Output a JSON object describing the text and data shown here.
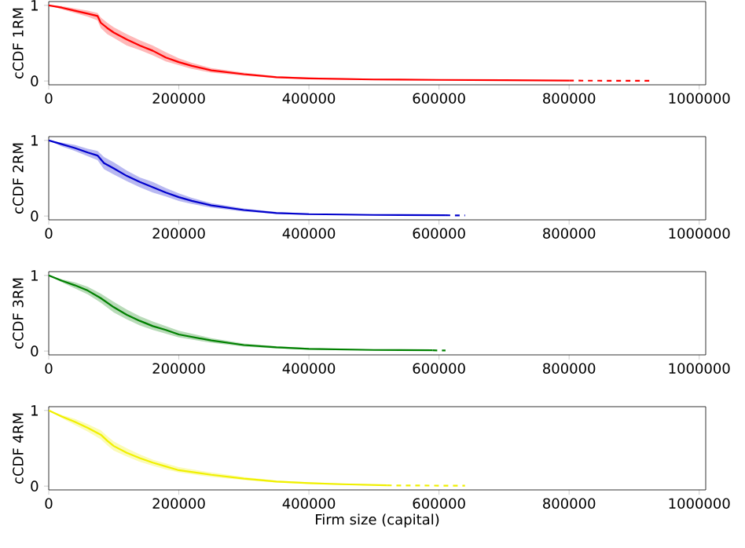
{
  "chart_data": [
    {
      "type": "line",
      "ylabel": "cCDF 1RM",
      "xlim": [
        0,
        1010000
      ],
      "ylim": [
        -0.05,
        1.05
      ],
      "xticks": [
        0,
        200000,
        400000,
        600000,
        800000,
        1000000
      ],
      "yticks": [
        0,
        1
      ],
      "series": [
        {
          "color": "#ff0000",
          "line_style": "solid",
          "x": [
            0,
            20000,
            40000,
            60000,
            75000,
            80000,
            90000,
            100000,
            120000,
            140000,
            160000,
            180000,
            200000,
            220000,
            250000,
            300000,
            350000,
            400000,
            500000,
            600000,
            700000,
            800000
          ],
          "values": [
            1.0,
            0.97,
            0.93,
            0.89,
            0.86,
            0.77,
            0.7,
            0.64,
            0.55,
            0.47,
            0.4,
            0.31,
            0.25,
            0.2,
            0.14,
            0.09,
            0.05,
            0.035,
            0.02,
            0.015,
            0.01,
            0.005
          ],
          "lower": [
            1.0,
            0.95,
            0.9,
            0.85,
            0.8,
            0.7,
            0.62,
            0.57,
            0.47,
            0.41,
            0.34,
            0.26,
            0.21,
            0.16,
            0.11,
            0.07,
            0.04,
            0.025,
            0.015,
            0.01,
            0.005,
            0.0
          ],
          "upper": [
            1.0,
            0.99,
            0.96,
            0.93,
            0.9,
            0.84,
            0.77,
            0.71,
            0.62,
            0.54,
            0.47,
            0.38,
            0.3,
            0.24,
            0.17,
            0.11,
            0.065,
            0.045,
            0.03,
            0.02,
            0.015,
            0.01
          ]
        },
        {
          "color": "#ff0000",
          "line_style": "dashed",
          "x": [
            800000,
            930000
          ],
          "values": [
            0.005,
            0.003
          ]
        }
      ]
    },
    {
      "type": "line",
      "ylabel": "cCDF 2RM",
      "xlim": [
        0,
        1010000
      ],
      "ylim": [
        -0.05,
        1.05
      ],
      "xticks": [
        0,
        200000,
        400000,
        600000,
        800000,
        1000000
      ],
      "yticks": [
        0,
        1
      ],
      "series": [
        {
          "color": "#0000cc",
          "line_style": "solid",
          "x": [
            0,
            20000,
            40000,
            60000,
            75000,
            85000,
            100000,
            120000,
            140000,
            160000,
            180000,
            200000,
            220000,
            250000,
            300000,
            350000,
            400000,
            500000,
            610000
          ],
          "values": [
            1.0,
            0.95,
            0.9,
            0.84,
            0.8,
            0.7,
            0.63,
            0.53,
            0.45,
            0.38,
            0.31,
            0.25,
            0.2,
            0.14,
            0.08,
            0.04,
            0.025,
            0.015,
            0.01
          ],
          "lower": [
            1.0,
            0.92,
            0.86,
            0.79,
            0.74,
            0.62,
            0.55,
            0.46,
            0.38,
            0.31,
            0.26,
            0.2,
            0.16,
            0.11,
            0.06,
            0.03,
            0.015,
            0.01,
            0.005
          ],
          "upper": [
            1.0,
            0.97,
            0.94,
            0.89,
            0.86,
            0.78,
            0.71,
            0.6,
            0.51,
            0.45,
            0.37,
            0.3,
            0.24,
            0.17,
            0.1,
            0.055,
            0.035,
            0.02,
            0.015
          ]
        },
        {
          "color": "#0000cc",
          "line_style": "dashed",
          "x": [
            610000,
            640000
          ],
          "values": [
            0.01,
            0.008
          ]
        }
      ]
    },
    {
      "type": "line",
      "ylabel": "cCDF 3RM",
      "xlim": [
        0,
        1010000
      ],
      "ylim": [
        -0.05,
        1.05
      ],
      "xticks": [
        0,
        200000,
        400000,
        600000,
        800000,
        1000000
      ],
      "yticks": [
        0,
        1
      ],
      "series": [
        {
          "color": "#008000",
          "line_style": "solid",
          "x": [
            0,
            20000,
            40000,
            60000,
            80000,
            100000,
            120000,
            140000,
            160000,
            180000,
            200000,
            250000,
            300000,
            350000,
            400000,
            500000,
            590000
          ],
          "values": [
            1.0,
            0.93,
            0.87,
            0.8,
            0.7,
            0.58,
            0.48,
            0.4,
            0.33,
            0.28,
            0.22,
            0.14,
            0.08,
            0.05,
            0.03,
            0.015,
            0.01
          ],
          "lower": [
            1.0,
            0.91,
            0.83,
            0.75,
            0.64,
            0.51,
            0.42,
            0.34,
            0.28,
            0.23,
            0.18,
            0.11,
            0.06,
            0.035,
            0.02,
            0.01,
            0.005
          ],
          "upper": [
            1.0,
            0.95,
            0.91,
            0.85,
            0.76,
            0.65,
            0.55,
            0.46,
            0.39,
            0.33,
            0.27,
            0.17,
            0.1,
            0.065,
            0.04,
            0.02,
            0.015
          ]
        },
        {
          "color": "#008000",
          "line_style": "dashed",
          "x": [
            590000,
            610000
          ],
          "values": [
            0.01,
            0.008
          ]
        }
      ]
    },
    {
      "type": "line",
      "ylabel": "cCDF 4RM",
      "xlabel": "Firm size (capital)",
      "xlim": [
        0,
        1010000
      ],
      "ylim": [
        -0.05,
        1.05
      ],
      "xticks": [
        0,
        200000,
        400000,
        600000,
        800000,
        1000000
      ],
      "yticks": [
        0,
        1
      ],
      "series": [
        {
          "color": "#f0f000",
          "line_style": "solid",
          "x": [
            0,
            20000,
            40000,
            60000,
            80000,
            90000,
            100000,
            120000,
            140000,
            160000,
            180000,
            200000,
            250000,
            300000,
            350000,
            400000,
            450000,
            520000
          ],
          "values": [
            1.0,
            0.92,
            0.85,
            0.77,
            0.68,
            0.6,
            0.53,
            0.44,
            0.37,
            0.31,
            0.26,
            0.21,
            0.15,
            0.1,
            0.06,
            0.04,
            0.025,
            0.01
          ],
          "lower": [
            1.0,
            0.9,
            0.81,
            0.72,
            0.62,
            0.54,
            0.47,
            0.39,
            0.32,
            0.27,
            0.22,
            0.18,
            0.12,
            0.08,
            0.045,
            0.03,
            0.015,
            0.005
          ],
          "upper": [
            1.0,
            0.94,
            0.89,
            0.82,
            0.74,
            0.66,
            0.59,
            0.5,
            0.42,
            0.35,
            0.3,
            0.25,
            0.18,
            0.12,
            0.075,
            0.05,
            0.035,
            0.015
          ]
        },
        {
          "color": "#f0f000",
          "line_style": "dashed",
          "x": [
            520000,
            640000
          ],
          "values": [
            0.01,
            0.005
          ]
        }
      ]
    }
  ]
}
